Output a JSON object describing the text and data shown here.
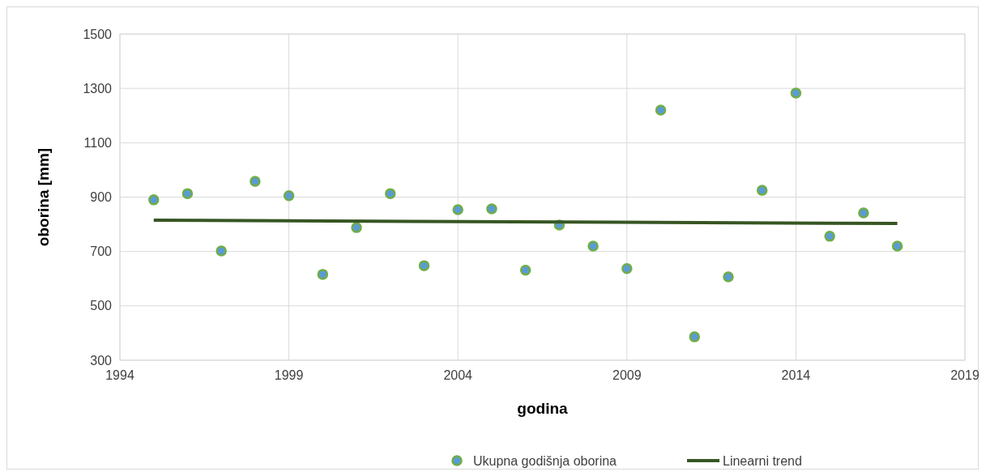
{
  "chart_data": {
    "type": "scatter",
    "xlabel": "godina",
    "ylabel": "oborina [mm]",
    "xlim": [
      1994,
      2019
    ],
    "xticks": [
      1994,
      1999,
      2004,
      2009,
      2014,
      2019
    ],
    "ylim": [
      300,
      1500
    ],
    "yticks": [
      300,
      500,
      700,
      900,
      1100,
      1300,
      1500
    ],
    "grid": true,
    "legend": "bottom",
    "marker": "circle",
    "series": [
      {
        "name": "Ukupna godišnja oborina",
        "color": "#70ad47",
        "x": [
          1995,
          1996,
          1997,
          1998,
          1999,
          2000,
          2001,
          2002,
          2003,
          2004,
          2005,
          2006,
          2007,
          2008,
          2009,
          2010,
          2011,
          2012,
          2013,
          2014,
          2015,
          2016,
          2017
        ],
        "values": [
          890,
          913,
          702,
          958,
          905,
          616,
          788,
          913,
          648,
          854,
          857,
          631,
          797,
          720,
          637,
          1220,
          386,
          607,
          925,
          1283,
          756,
          842,
          720
        ]
      },
      {
        "name": "Linearni trend",
        "type": "line",
        "color": "#375623",
        "line_style": "solid",
        "marker": "none",
        "x": [
          1995,
          2017
        ],
        "values": [
          815,
          803
        ]
      }
    ]
  }
}
